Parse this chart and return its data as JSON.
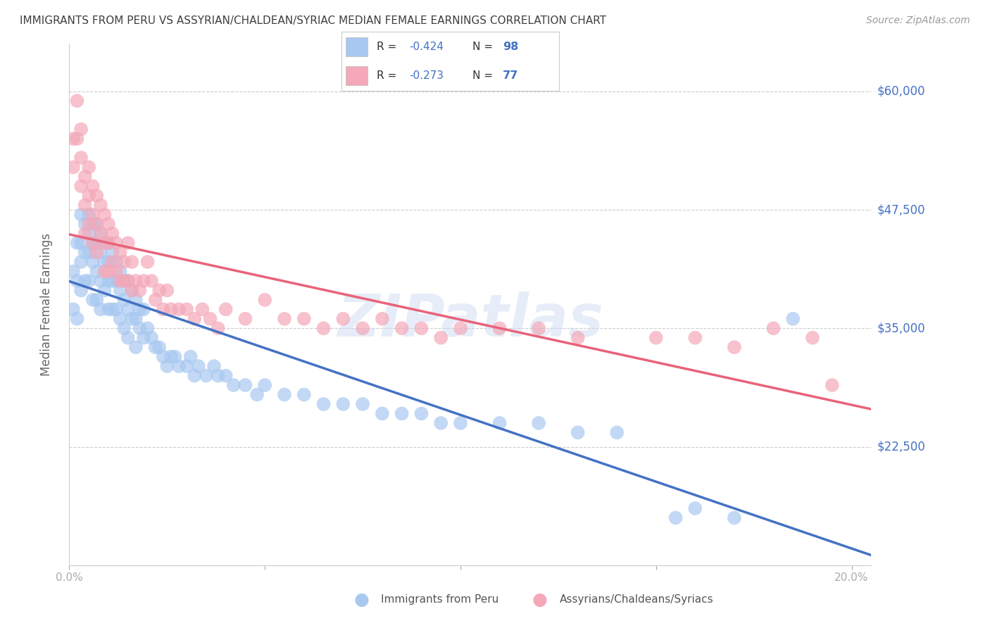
{
  "title": "IMMIGRANTS FROM PERU VS ASSYRIAN/CHALDEAN/SYRIAC MEDIAN FEMALE EARNINGS CORRELATION CHART",
  "source": "Source: ZipAtlas.com",
  "ylabel": "Median Female Earnings",
  "xlim": [
    0.0,
    0.205
  ],
  "ylim": [
    10000,
    65000
  ],
  "ytick_vals": [
    22500,
    35000,
    47500,
    60000
  ],
  "ytick_labels": [
    "$22,500",
    "$35,000",
    "$47,500",
    "$60,000"
  ],
  "xtick_vals": [
    0.0,
    0.05,
    0.1,
    0.15,
    0.2
  ],
  "xtick_labels": [
    "0.0%",
    "",
    "",
    "",
    "20.0%"
  ],
  "blue_R": "-0.424",
  "blue_N": "98",
  "pink_R": "-0.273",
  "pink_N": "77",
  "blue_color": "#A8C8F0",
  "pink_color": "#F4A8B8",
  "blue_line_color": "#4472C4",
  "pink_line_color": "#E8637A",
  "axis_color": "#4472C4",
  "title_color": "#404040",
  "grid_color": "#CCCCCC",
  "background_color": "#FFFFFF",
  "watermark": "ZIPatlas",
  "legend_label_blue": "Immigrants from Peru",
  "legend_label_pink": "Assyrians/Chaldeans/Syriacs",
  "blue_scatter_x": [
    0.001,
    0.001,
    0.002,
    0.002,
    0.002,
    0.003,
    0.003,
    0.003,
    0.003,
    0.004,
    0.004,
    0.004,
    0.005,
    0.005,
    0.005,
    0.005,
    0.006,
    0.006,
    0.006,
    0.006,
    0.007,
    0.007,
    0.007,
    0.007,
    0.008,
    0.008,
    0.008,
    0.008,
    0.009,
    0.009,
    0.009,
    0.01,
    0.01,
    0.01,
    0.01,
    0.011,
    0.011,
    0.011,
    0.012,
    0.012,
    0.012,
    0.013,
    0.013,
    0.013,
    0.014,
    0.014,
    0.014,
    0.015,
    0.015,
    0.015,
    0.016,
    0.016,
    0.017,
    0.017,
    0.017,
    0.018,
    0.018,
    0.019,
    0.019,
    0.02,
    0.021,
    0.022,
    0.023,
    0.024,
    0.025,
    0.026,
    0.027,
    0.028,
    0.03,
    0.031,
    0.032,
    0.033,
    0.035,
    0.037,
    0.038,
    0.04,
    0.042,
    0.045,
    0.048,
    0.05,
    0.055,
    0.06,
    0.065,
    0.07,
    0.075,
    0.08,
    0.085,
    0.09,
    0.095,
    0.1,
    0.11,
    0.12,
    0.13,
    0.14,
    0.155,
    0.16,
    0.17,
    0.185
  ],
  "blue_scatter_y": [
    41000,
    37000,
    44000,
    40000,
    36000,
    47000,
    44000,
    42000,
    39000,
    46000,
    43000,
    40000,
    47000,
    45000,
    43000,
    40000,
    46000,
    44000,
    42000,
    38000,
    46000,
    44000,
    41000,
    38000,
    45000,
    43000,
    40000,
    37000,
    44000,
    42000,
    39000,
    44000,
    42000,
    40000,
    37000,
    43000,
    40000,
    37000,
    42000,
    40000,
    37000,
    41000,
    39000,
    36000,
    40000,
    38000,
    35000,
    40000,
    37000,
    34000,
    39000,
    36000,
    38000,
    36000,
    33000,
    37000,
    35000,
    37000,
    34000,
    35000,
    34000,
    33000,
    33000,
    32000,
    31000,
    32000,
    32000,
    31000,
    31000,
    32000,
    30000,
    31000,
    30000,
    31000,
    30000,
    30000,
    29000,
    29000,
    28000,
    29000,
    28000,
    28000,
    27000,
    27000,
    27000,
    26000,
    26000,
    26000,
    25000,
    25000,
    25000,
    25000,
    24000,
    24000,
    15000,
    16000,
    15000,
    36000
  ],
  "pink_scatter_x": [
    0.001,
    0.001,
    0.002,
    0.002,
    0.003,
    0.003,
    0.003,
    0.004,
    0.004,
    0.004,
    0.005,
    0.005,
    0.005,
    0.006,
    0.006,
    0.006,
    0.007,
    0.007,
    0.007,
    0.008,
    0.008,
    0.009,
    0.009,
    0.009,
    0.01,
    0.01,
    0.01,
    0.011,
    0.011,
    0.012,
    0.012,
    0.013,
    0.013,
    0.014,
    0.014,
    0.015,
    0.015,
    0.016,
    0.016,
    0.017,
    0.018,
    0.019,
    0.02,
    0.021,
    0.022,
    0.023,
    0.024,
    0.025,
    0.026,
    0.028,
    0.03,
    0.032,
    0.034,
    0.036,
    0.038,
    0.04,
    0.045,
    0.05,
    0.055,
    0.06,
    0.065,
    0.07,
    0.075,
    0.08,
    0.085,
    0.09,
    0.095,
    0.1,
    0.11,
    0.12,
    0.13,
    0.15,
    0.16,
    0.17,
    0.18,
    0.19,
    0.195
  ],
  "pink_scatter_y": [
    55000,
    52000,
    59000,
    55000,
    56000,
    53000,
    50000,
    51000,
    48000,
    45000,
    52000,
    49000,
    46000,
    50000,
    47000,
    44000,
    49000,
    46000,
    43000,
    48000,
    45000,
    47000,
    44000,
    41000,
    46000,
    44000,
    41000,
    45000,
    42000,
    44000,
    41000,
    43000,
    40000,
    42000,
    40000,
    44000,
    40000,
    42000,
    39000,
    40000,
    39000,
    40000,
    42000,
    40000,
    38000,
    39000,
    37000,
    39000,
    37000,
    37000,
    37000,
    36000,
    37000,
    36000,
    35000,
    37000,
    36000,
    38000,
    36000,
    36000,
    35000,
    36000,
    35000,
    36000,
    35000,
    35000,
    34000,
    35000,
    35000,
    35000,
    34000,
    34000,
    34000,
    33000,
    35000,
    34000,
    29000
  ]
}
